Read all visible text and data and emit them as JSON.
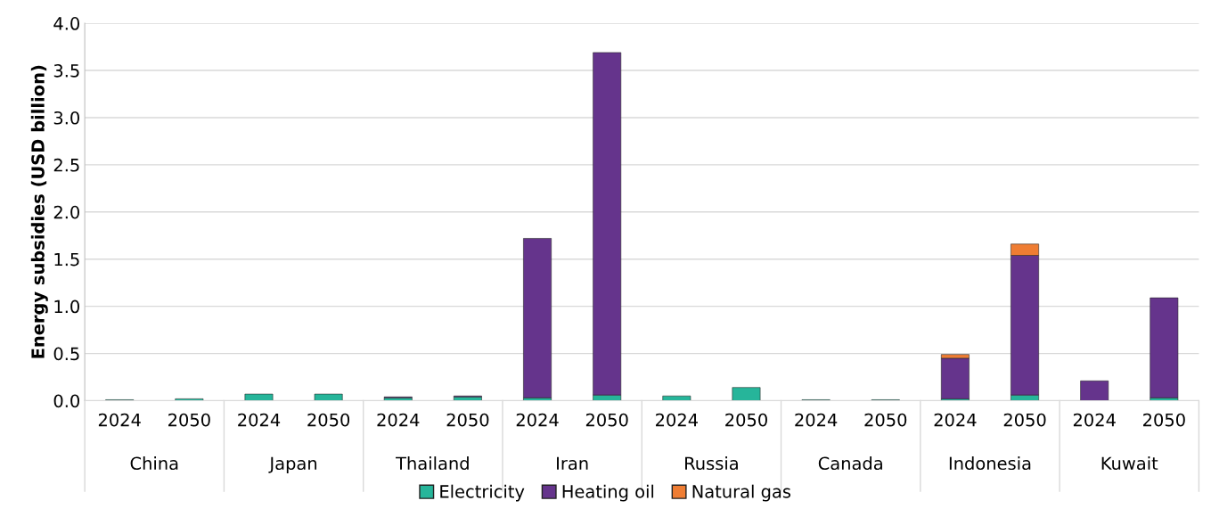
{
  "chart_data": {
    "type": "bar",
    "stacked": true,
    "ylabel": "Energy subsidies (USD billion)",
    "categories": [
      "2024",
      "2050",
      "2024",
      "2050",
      "2024",
      "2050",
      "2024",
      "2050",
      "2024",
      "2050",
      "2024",
      "2050",
      "2024",
      "2050",
      "2024",
      "2050"
    ],
    "annotations": [
      "China",
      "Japan",
      "Thailand",
      "Iran",
      "Russia",
      "Canada",
      "Indonesia",
      "Kuwait"
    ],
    "series": [
      {
        "name": "Electricity",
        "color": "#26b59a",
        "values": [
          0.01,
          0.02,
          0.07,
          0.07,
          0.03,
          0.04,
          0.03,
          0.06,
          0.05,
          0.14,
          0.01,
          0.01,
          0.02,
          0.06,
          null,
          0.03
        ]
      },
      {
        "name": "Heating oil",
        "color": "#65348c",
        "values": [
          null,
          null,
          null,
          null,
          0.01,
          0.01,
          1.69,
          3.63,
          null,
          null,
          null,
          null,
          0.43,
          1.48,
          0.21,
          1.06
        ]
      },
      {
        "name": "Natural gas",
        "color": "#ef7d33",
        "values": [
          null,
          null,
          null,
          null,
          null,
          null,
          null,
          null,
          null,
          null,
          null,
          null,
          0.04,
          0.12,
          null,
          null
        ]
      }
    ],
    "ylim": [
      0,
      4.0
    ],
    "yticks": [
      {
        "value": 0,
        "label": "0.0"
      },
      {
        "value": 0.5,
        "label": "0.5"
      },
      {
        "value": 1,
        "label": "1.0"
      },
      {
        "value": 1.5,
        "label": "1.5"
      },
      {
        "value": 2,
        "label": "2.0"
      },
      {
        "value": 2.5,
        "label": "2.5"
      },
      {
        "value": 3,
        "label": "3.0"
      },
      {
        "value": 3.5,
        "label": "3.5"
      },
      {
        "value": 4,
        "label": "4.0"
      }
    ],
    "grid": "y",
    "legend": "bottom"
  }
}
